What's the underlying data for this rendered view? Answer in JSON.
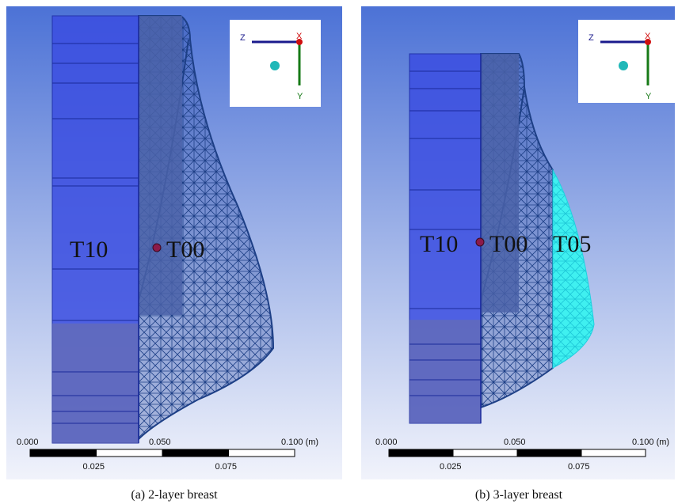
{
  "panels": [
    {
      "labels": [
        "T10",
        "T00"
      ],
      "triad": {
        "z": "Z",
        "x": "X",
        "y": "Y"
      },
      "scale": {
        "top": [
          "0.000",
          "0.050",
          "0.100 (m)"
        ],
        "bottom": [
          "0.025",
          "0.075"
        ]
      },
      "caption": "(a) 2-layer breast"
    },
    {
      "labels": [
        "T10",
        "T00",
        "T05"
      ],
      "triad": {
        "z": "Z",
        "x": "X",
        "y": "Y"
      },
      "scale": {
        "top": [
          "0.000",
          "0.050",
          "0.100 (m)"
        ],
        "bottom": [
          "0.025",
          "0.075"
        ]
      },
      "caption": "(b) 3-layer breast"
    }
  ]
}
